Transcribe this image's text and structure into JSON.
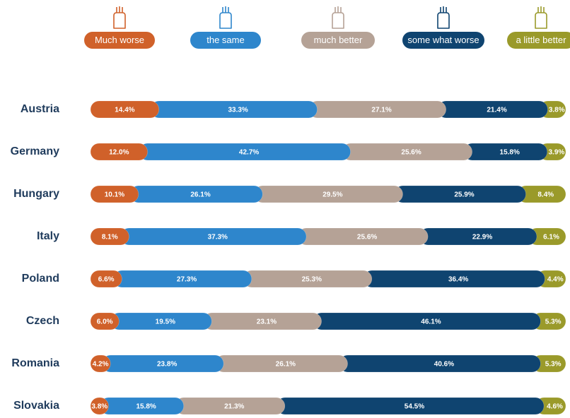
{
  "chart_data": {
    "type": "stacked-bar-horizontal",
    "categories": [
      "Austria",
      "Germany",
      "Hungary",
      "Italy",
      "Poland",
      "Czech",
      "Romania",
      "Slovakia"
    ],
    "xlim": [
      0,
      100
    ],
    "series": [
      {
        "name": "Much worse",
        "color": "#d0612a",
        "values": [
          14.4,
          12.0,
          10.1,
          8.1,
          6.6,
          6.0,
          4.2,
          3.8
        ],
        "value_labels": [
          "14.4%",
          "12.0%",
          "10.1%",
          "8.1%",
          "6.6%",
          "6.0%",
          "4.2%",
          "3.8%"
        ]
      },
      {
        "name": "the same",
        "color": "#2e86cc",
        "values": [
          33.3,
          42.7,
          26.1,
          37.3,
          27.3,
          19.5,
          23.8,
          15.8
        ],
        "value_labels": [
          "33.3%",
          "42.7%",
          "26.1%",
          "37.3%",
          "27.3%",
          "19.5%",
          "23.8%",
          "15.8%"
        ]
      },
      {
        "name": "much better",
        "color": "#b5a296",
        "values": [
          27.1,
          25.6,
          29.5,
          25.6,
          25.3,
          23.1,
          26.1,
          21.3
        ],
        "value_labels": [
          "27.1%",
          "25.6%",
          "29.5%",
          "25.6%",
          "25.3%",
          "23.1%",
          "26.1%",
          "21.3%"
        ]
      },
      {
        "name": "some what worse",
        "color": "#0f4470",
        "values": [
          21.4,
          15.8,
          25.9,
          22.9,
          36.4,
          46.1,
          40.6,
          54.5
        ],
        "value_labels": [
          "21.4%",
          "15.8%",
          "25.9%",
          "22.9%",
          "36.4%",
          "46.1%",
          "40.6%",
          "54.5%"
        ]
      },
      {
        "name": "a little better",
        "color": "#9a9a2a",
        "values": [
          3.8,
          3.9,
          8.4,
          6.1,
          4.4,
          5.3,
          5.3,
          4.6
        ],
        "value_labels": [
          "3.8%",
          "3.9%",
          "8.4%",
          "6.1%",
          "4.4%",
          "5.3%",
          "5.3%",
          "4.6%"
        ]
      }
    ]
  }
}
